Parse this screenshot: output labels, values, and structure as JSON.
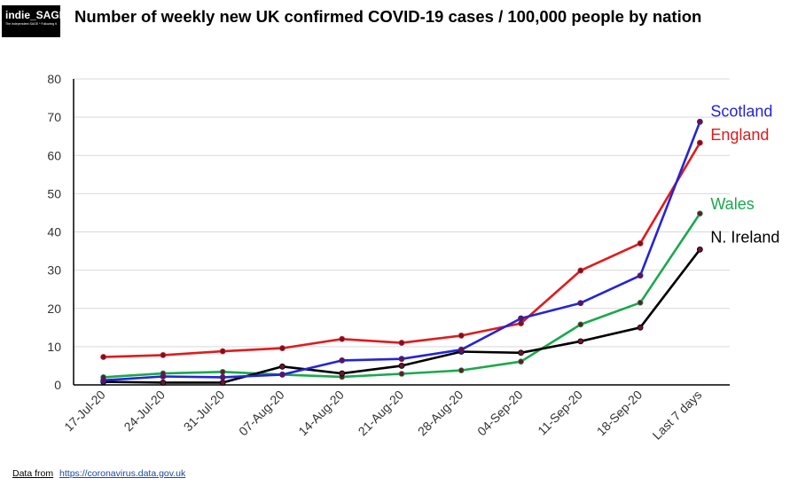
{
  "logo": {
    "name": "indie_SAGE",
    "tagline": "The Independent SAGE * Following the science"
  },
  "header": {
    "title": "Number of weekly new UK confirmed COVID-19 cases / 100,000 people by nation"
  },
  "footer": {
    "label": "Data from",
    "link_text": "https://coronavirus.data.gov.uk"
  },
  "chart_data": {
    "type": "line",
    "title": "Number of weekly new UK confirmed COVID-19 cases / 100,000 people by nation",
    "xlabel": "",
    "ylabel": "",
    "categories": [
      "17-Jul-20",
      "24-Jul-20",
      "31-Jul-20",
      "07-Aug-20",
      "14-Aug-20",
      "21-Aug-20",
      "28-Aug-20",
      "04-Sep-20",
      "11-Sep-20",
      "18-Sep-20",
      "Last 7 days"
    ],
    "ylim": [
      0,
      80
    ],
    "yticks": [
      0,
      10,
      20,
      30,
      40,
      50,
      60,
      70,
      80
    ],
    "grid": "horizontal",
    "legend": "series labels at line ends",
    "series": [
      {
        "name": "Scotland",
        "color": "#2424d8",
        "values": [
          1.2,
          2.2,
          2.0,
          2.7,
          6.4,
          6.8,
          9.2,
          17.4,
          21.4,
          28.6,
          68.8
        ]
      },
      {
        "name": "England",
        "color": "#e01b1b",
        "values": [
          7.3,
          7.8,
          8.8,
          9.6,
          12.0,
          11.0,
          12.9,
          16.1,
          29.9,
          37.0,
          63.3
        ]
      },
      {
        "name": "Wales",
        "color": "#1aa84c",
        "values": [
          2.0,
          3.0,
          3.4,
          2.7,
          2.1,
          2.9,
          3.8,
          6.1,
          15.8,
          21.5,
          44.8
        ]
      },
      {
        "name": "N. Ireland",
        "color": "#000000",
        "values": [
          0.8,
          0.6,
          0.6,
          4.8,
          3.0,
          5.0,
          8.7,
          8.4,
          11.4,
          15.0,
          35.4
        ]
      }
    ],
    "marker_color": "#6b1530"
  }
}
